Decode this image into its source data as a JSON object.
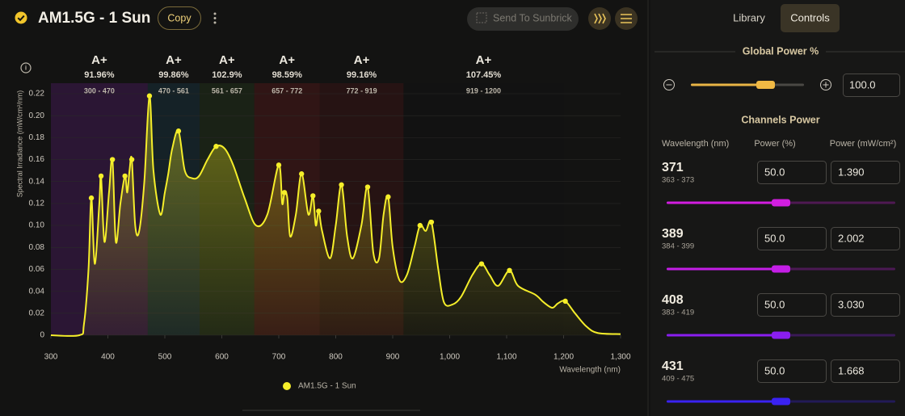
{
  "header": {
    "title": "AM1.5G - 1 Sun",
    "copy": "Copy",
    "send": "Send To Sunbrick"
  },
  "chart_data": {
    "type": "line",
    "x_label": "Wavelength (nm)",
    "y_label": "Spectral Irradiance (mW/cm²/nm)",
    "xlim": [
      300,
      1300
    ],
    "ylim": [
      0,
      0.22
    ],
    "xticks": [
      300,
      400,
      500,
      600,
      700,
      800,
      900,
      {
        "value": 1000,
        "label": "1,000"
      },
      {
        "value": 1100,
        "label": "1,100"
      },
      {
        "value": 1200,
        "label": "1,200"
      },
      {
        "value": 1300,
        "label": "1,300"
      }
    ],
    "yticks": [
      0,
      0.02,
      0.04,
      0.06,
      0.08,
      {
        "value": 0.1,
        "label": "0.10"
      },
      0.12,
      0.14,
      0.16,
      0.18,
      {
        "value": 0.2,
        "label": "0.20"
      },
      0.22
    ],
    "series": [
      {
        "name": "AM1.5G - 1 Sun",
        "color": "#f5ee2a",
        "x": [
          300,
          350,
          358,
          366,
          371,
          377,
          385,
          388,
          394,
          402,
          408,
          414,
          422,
          430,
          434,
          438,
          442,
          448,
          455,
          464,
          473,
          480,
          492,
          500,
          506,
          513,
          524,
          535,
          548,
          560,
          575,
          590,
          605,
          620,
          640,
          660,
          680,
          700,
          706,
          710,
          715,
          720,
          730,
          740,
          752,
          760,
          765,
          770,
          776,
          790,
          800,
          810,
          820,
          830,
          845,
          856,
          866,
          876,
          884,
          892,
          900,
          912,
          925,
          938,
          948,
          958,
          968,
          980,
          990,
          1005,
          1020,
          1040,
          1056,
          1070,
          1085,
          1105,
          1120,
          1150,
          1165,
          1180,
          1190,
          1203,
          1220,
          1240,
          1260,
          1300
        ],
        "values": [
          0,
          0,
          0.01,
          0.06,
          0.125,
          0.065,
          0.12,
          0.145,
          0.085,
          0.13,
          0.16,
          0.085,
          0.12,
          0.145,
          0.13,
          0.15,
          0.16,
          0.1,
          0.095,
          0.14,
          0.218,
          0.15,
          0.11,
          0.13,
          0.147,
          0.17,
          0.186,
          0.15,
          0.143,
          0.145,
          0.16,
          0.172,
          0.17,
          0.155,
          0.125,
          0.1,
          0.11,
          0.155,
          0.12,
          0.13,
          0.125,
          0.09,
          0.11,
          0.147,
          0.11,
          0.127,
          0.1,
          0.113,
          0.095,
          0.07,
          0.1,
          0.137,
          0.09,
          0.07,
          0.1,
          0.135,
          0.075,
          0.07,
          0.11,
          0.126,
          0.08,
          0.05,
          0.055,
          0.08,
          0.1,
          0.095,
          0.103,
          0.06,
          0.03,
          0.028,
          0.035,
          0.055,
          0.065,
          0.055,
          0.045,
          0.059,
          0.045,
          0.037,
          0.03,
          0.025,
          0.029,
          0.031,
          0.02,
          0.008,
          0.002,
          0.001
        ]
      }
    ],
    "bands": [
      {
        "grade": "A+",
        "percent": "91.96%",
        "range": "300 - 470",
        "start": 300,
        "end": 470,
        "color": "#6a1f8c"
      },
      {
        "grade": "A+",
        "percent": "99.86%",
        "range": "470 - 561",
        "start": 470,
        "end": 561,
        "color": "#1d4a5c"
      },
      {
        "grade": "A+",
        "percent": "102.9%",
        "range": "561 - 657",
        "start": 561,
        "end": 657,
        "color": "#2f4d22"
      },
      {
        "grade": "A+",
        "percent": "98.59%",
        "range": "657 - 772",
        "start": 657,
        "end": 772,
        "color": "#7c1c1c"
      },
      {
        "grade": "A+",
        "percent": "99.16%",
        "range": "772 - 919",
        "start": 772,
        "end": 919,
        "color": "#5a1616"
      },
      {
        "grade": "A+",
        "percent": "107.45%",
        "range": "919 - 1200",
        "start": 919,
        "end": 1200,
        "color": "#131312"
      }
    ]
  },
  "panel": {
    "tabs": [
      "Library",
      "Controls"
    ],
    "global_power": {
      "title": "Global Power %",
      "value": "100.0"
    },
    "channels_title": "Channels Power",
    "columns": [
      "Wavelength (nm)",
      "Power (%)",
      "Power (mW/cm²)"
    ],
    "channels": [
      {
        "wavelength": "371",
        "range": "363 - 373",
        "power": "50.0",
        "irradiance": "1.390",
        "color": "#d21ee0"
      },
      {
        "wavelength": "389",
        "range": "384 - 399",
        "power": "50.0",
        "irradiance": "2.002",
        "color": "#c41ee6"
      },
      {
        "wavelength": "408",
        "range": "383 - 419",
        "power": "50.0",
        "irradiance": "3.030",
        "color": "#8a1ef0"
      },
      {
        "wavelength": "431",
        "range": "409 - 475",
        "power": "50.0",
        "irradiance": "1.668",
        "color": "#3a22f2"
      }
    ]
  }
}
